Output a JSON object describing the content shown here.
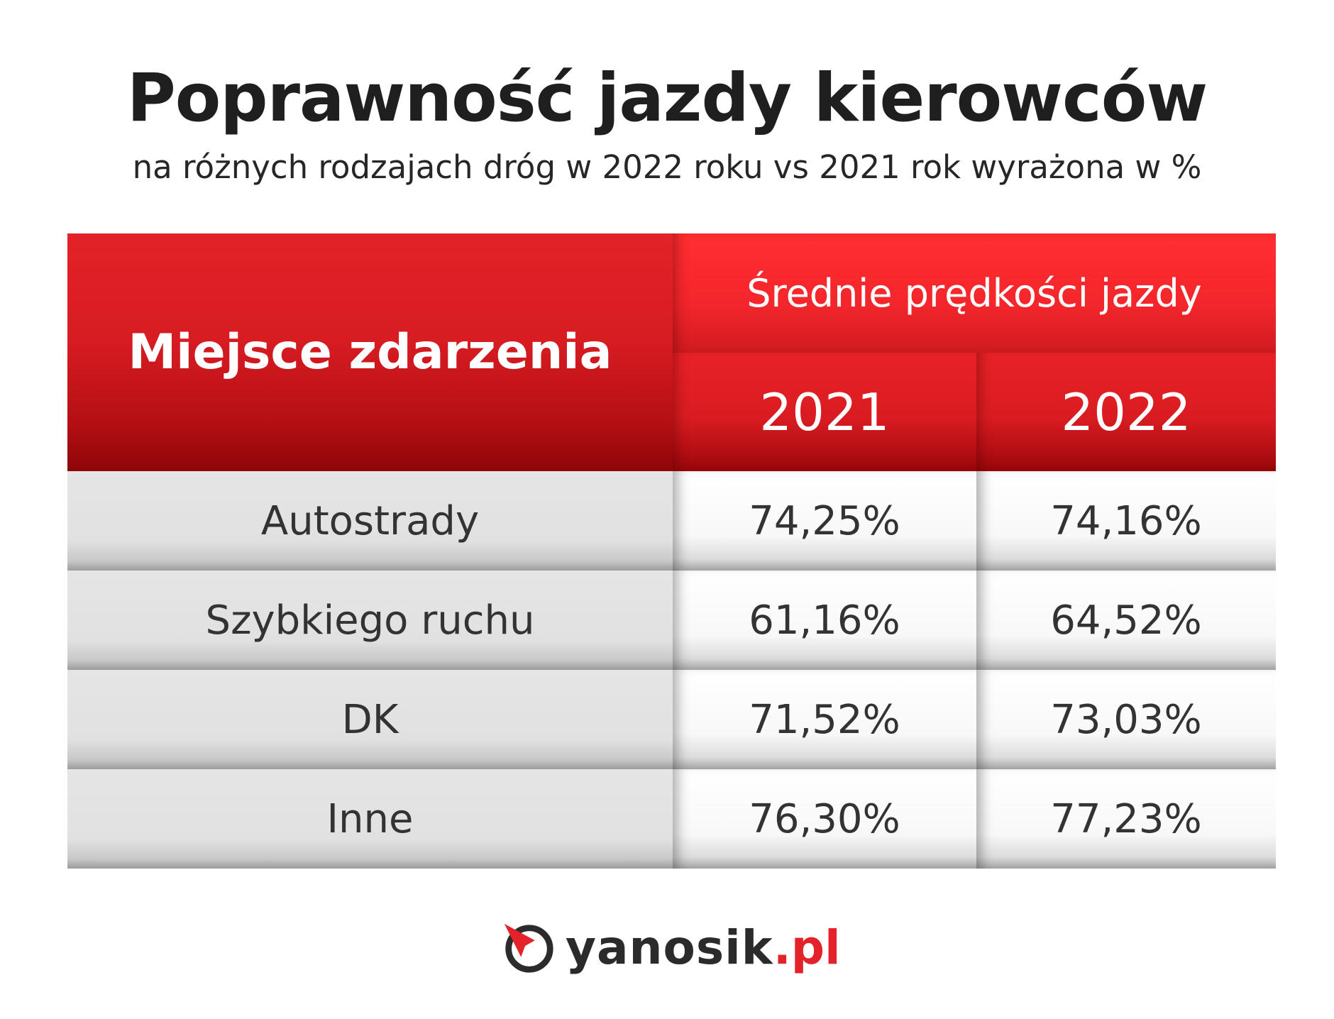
{
  "title": "Poprawność jazdy kierowców",
  "subtitle": "na różnych rodzajach dróg w 2022 roku vs 2021 rok wyrażona w %",
  "chart_data": {
    "type": "table",
    "header": {
      "row_label_header": "Miejsce zdarzenia",
      "group_header": "Średnie prędkości jazdy",
      "columns": [
        "2021",
        "2022"
      ]
    },
    "rows": [
      {
        "label": "Autostrady",
        "values": [
          "74,25%",
          "74,16%"
        ]
      },
      {
        "label": "Szybkiego ruchu",
        "values": [
          "61,16%",
          "64,52%"
        ]
      },
      {
        "label": "DK",
        "values": [
          "71,52%",
          "73,03%"
        ]
      },
      {
        "label": "Inne",
        "values": [
          "76,30%",
          "77,23%"
        ]
      }
    ]
  },
  "logo": {
    "name": "yanosik",
    "tld": ".pl",
    "icon": "yanosik-logo-icon"
  },
  "colors": {
    "header_red": "#d71c22",
    "header_red_dark": "#8e0508",
    "row_grey": "#e1e1e1",
    "text_dark": "#333333",
    "brand_red": "#e4222a"
  }
}
